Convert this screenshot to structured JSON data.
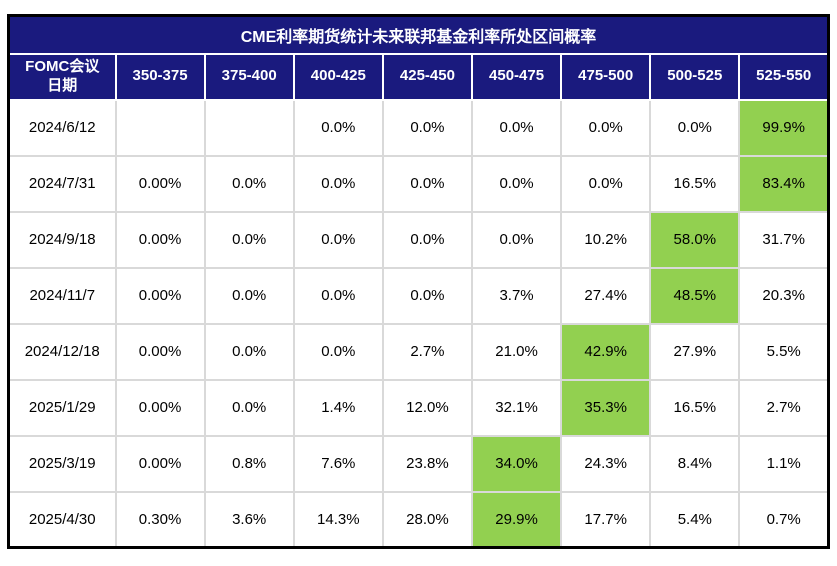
{
  "chart_data": {
    "type": "table",
    "title": "CME利率期货统计未来联邦基金利率所处区间概率",
    "corner_header": "FOMC会议日期",
    "corner_header_lines": [
      "FOMC会议",
      "日期"
    ],
    "rate_range_columns": [
      "350-375",
      "375-400",
      "400-425",
      "425-450",
      "450-475",
      "475-500",
      "500-525",
      "525-550"
    ],
    "rows": [
      {
        "date": "2024/6/12",
        "values": [
          "",
          "",
          "0.0%",
          "0.0%",
          "0.0%",
          "0.0%",
          "0.0%",
          "99.9%"
        ],
        "highlight_col": 7
      },
      {
        "date": "2024/7/31",
        "values": [
          "0.00%",
          "0.0%",
          "0.0%",
          "0.0%",
          "0.0%",
          "0.0%",
          "16.5%",
          "83.4%"
        ],
        "highlight_col": 7
      },
      {
        "date": "2024/9/18",
        "values": [
          "0.00%",
          "0.0%",
          "0.0%",
          "0.0%",
          "0.0%",
          "10.2%",
          "58.0%",
          "31.7%"
        ],
        "highlight_col": 6
      },
      {
        "date": "2024/11/7",
        "values": [
          "0.00%",
          "0.0%",
          "0.0%",
          "0.0%",
          "3.7%",
          "27.4%",
          "48.5%",
          "20.3%"
        ],
        "highlight_col": 6
      },
      {
        "date": "2024/12/18",
        "values": [
          "0.00%",
          "0.0%",
          "0.0%",
          "2.7%",
          "21.0%",
          "42.9%",
          "27.9%",
          "5.5%"
        ],
        "highlight_col": 5
      },
      {
        "date": "2025/1/29",
        "values": [
          "0.00%",
          "0.0%",
          "1.4%",
          "12.0%",
          "32.1%",
          "35.3%",
          "16.5%",
          "2.7%"
        ],
        "highlight_col": 5
      },
      {
        "date": "2025/3/19",
        "values": [
          "0.00%",
          "0.8%",
          "7.6%",
          "23.8%",
          "34.0%",
          "24.3%",
          "8.4%",
          "1.1%"
        ],
        "highlight_col": 4
      },
      {
        "date": "2025/4/30",
        "values": [
          "0.30%",
          "3.6%",
          "14.3%",
          "28.0%",
          "29.9%",
          "17.7%",
          "5.4%",
          "0.7%"
        ],
        "highlight_col": 4
      }
    ],
    "colors": {
      "header_bg": "#1A1A7E",
      "header_text": "#FFFFFF",
      "highlight_bg": "#92D050",
      "grid_line": "#D9D9D9",
      "outer_border": "#000000",
      "body_text": "#000000"
    },
    "layout": {
      "legend_position": "none",
      "grid": "on",
      "highlight_style": "green fill on most probable rate range per row"
    }
  }
}
